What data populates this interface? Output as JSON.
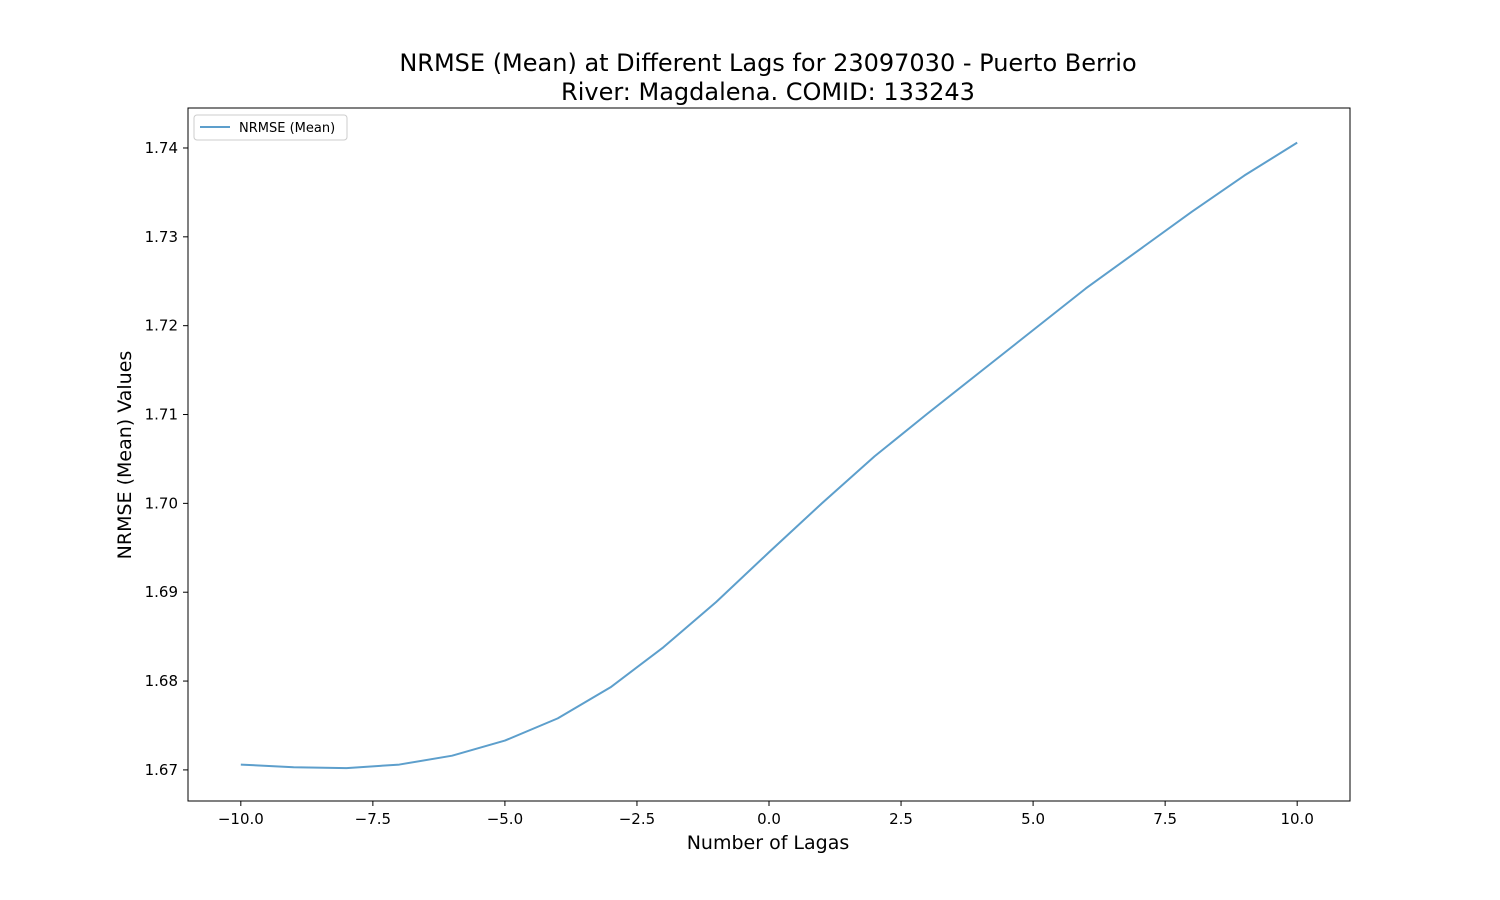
{
  "chart_data": {
    "type": "line",
    "title": "NRMSE (Mean) at Different Lags for 23097030 - Puerto Berrio",
    "subtitle": "River: Magdalena. COMID: 133243",
    "xlabel": "Number of Lagas",
    "ylabel": "NRMSE (Mean) Values",
    "xlim": [
      -11,
      11
    ],
    "ylim": [
      1.6665,
      1.7445
    ],
    "xticks": [
      -10.0,
      -7.5,
      -5.0,
      -2.5,
      0.0,
      2.5,
      5.0,
      7.5,
      10.0
    ],
    "xtick_labels": [
      "−10.0",
      "−7.5",
      "−5.0",
      "−2.5",
      "0.0",
      "2.5",
      "5.0",
      "7.5",
      "10.0"
    ],
    "yticks": [
      1.67,
      1.68,
      1.69,
      1.7,
      1.71,
      1.72,
      1.73,
      1.74
    ],
    "ytick_labels": [
      "1.67",
      "1.68",
      "1.69",
      "1.70",
      "1.71",
      "1.72",
      "1.73",
      "1.74"
    ],
    "grid": false,
    "legend_position": "upper-left",
    "series": [
      {
        "name": "NRMSE (Mean)",
        "color": "#5d9fcc",
        "x": [
          -10,
          -9,
          -8,
          -7,
          -6,
          -5,
          -4,
          -3,
          -2,
          -1,
          0,
          1,
          2,
          3,
          4,
          5,
          6,
          7,
          8,
          9,
          10
        ],
        "y": [
          1.6706,
          1.6703,
          1.6702,
          1.6706,
          1.6716,
          1.6733,
          1.6758,
          1.6793,
          1.6838,
          1.6889,
          1.6945,
          1.7,
          1.7053,
          1.7101,
          1.7148,
          1.7195,
          1.7242,
          1.7285,
          1.7328,
          1.7369,
          1.7406
        ]
      }
    ]
  }
}
